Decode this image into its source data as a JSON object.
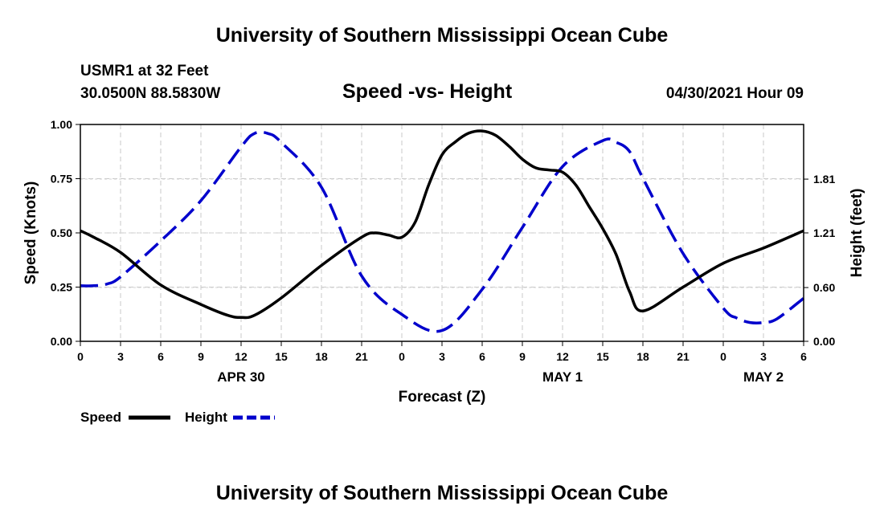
{
  "header": {
    "title_top": "University of Southern Mississippi Ocean Cube",
    "station": "USMR1 at 32 Feet",
    "coords": "30.0500N  88.5830W",
    "datetime": "04/30/2021 Hour 09",
    "title_bottom": "University of Southern Mississippi Ocean Cube"
  },
  "chart_data": {
    "type": "line",
    "title": "Speed -vs- Height",
    "xlabel": "Forecast (Z)",
    "ylabel_left": "Speed (Knots)",
    "ylabel_right": "Height (feet)",
    "xlim": [
      0,
      54
    ],
    "ylim_left": [
      0,
      1
    ],
    "ylim_right": [
      0,
      2.42
    ],
    "grid": true,
    "x_ticks": [
      0,
      3,
      6,
      9,
      12,
      15,
      18,
      21,
      24,
      27,
      30,
      33,
      36,
      39,
      42,
      45,
      48,
      51,
      54
    ],
    "x_tick_labels": [
      "0",
      "3",
      "6",
      "9",
      "12",
      "15",
      "18",
      "21",
      "0",
      "3",
      "6",
      "9",
      "12",
      "15",
      "18",
      "21",
      "0",
      "3",
      "6"
    ],
    "y_ticks_left": [
      0,
      0.25,
      0.5,
      0.75,
      1.0
    ],
    "y_tick_labels_left": [
      "0.00",
      "0.25",
      "0.50",
      "0.75",
      "1.00"
    ],
    "y_ticks_right": [
      0,
      0.6,
      1.21,
      1.81
    ],
    "y_tick_labels_right": [
      "0.00",
      "0.60",
      "1.21",
      "1.81"
    ],
    "day_labels": [
      {
        "x": 12,
        "label": "APR 30"
      },
      {
        "x": 36,
        "label": "MAY 1"
      },
      {
        "x": 51,
        "label": "MAY 2"
      }
    ],
    "legend": {
      "position": "bottom-left"
    },
    "series": [
      {
        "name": "Speed",
        "axis": "left",
        "color": "#000000",
        "style": "solid",
        "x": [
          0,
          1,
          3,
          6,
          9,
          11,
          12,
          13,
          15,
          18,
          21,
          22,
          23,
          24,
          25,
          26,
          27,
          28,
          29,
          30,
          31,
          32,
          33,
          34,
          35,
          36,
          37,
          38,
          39,
          40,
          41,
          42,
          45,
          48,
          51,
          54
        ],
        "y": [
          0.51,
          0.48,
          0.41,
          0.26,
          0.17,
          0.12,
          0.11,
          0.12,
          0.2,
          0.35,
          0.48,
          0.5,
          0.49,
          0.48,
          0.55,
          0.72,
          0.86,
          0.92,
          0.96,
          0.97,
          0.95,
          0.9,
          0.84,
          0.8,
          0.79,
          0.78,
          0.72,
          0.62,
          0.52,
          0.4,
          0.23,
          0.14,
          0.25,
          0.36,
          0.43,
          0.51
        ]
      },
      {
        "name": "Height",
        "axis": "right",
        "color": "#0000cc",
        "style": "dashed",
        "x": [
          0,
          1,
          2,
          3,
          6,
          9,
          12,
          13,
          14,
          15,
          18,
          21,
          24,
          27,
          30,
          33,
          36,
          39,
          40,
          41,
          42,
          45,
          48,
          49,
          50,
          51,
          52,
          54
        ],
        "y": [
          0.62,
          0.62,
          0.64,
          0.72,
          1.12,
          1.57,
          2.17,
          2.32,
          2.32,
          2.22,
          1.72,
          0.73,
          0.3,
          0.12,
          0.58,
          1.27,
          1.95,
          2.24,
          2.22,
          2.12,
          1.82,
          0.98,
          0.37,
          0.26,
          0.21,
          0.21,
          0.25,
          0.48
        ]
      }
    ]
  }
}
